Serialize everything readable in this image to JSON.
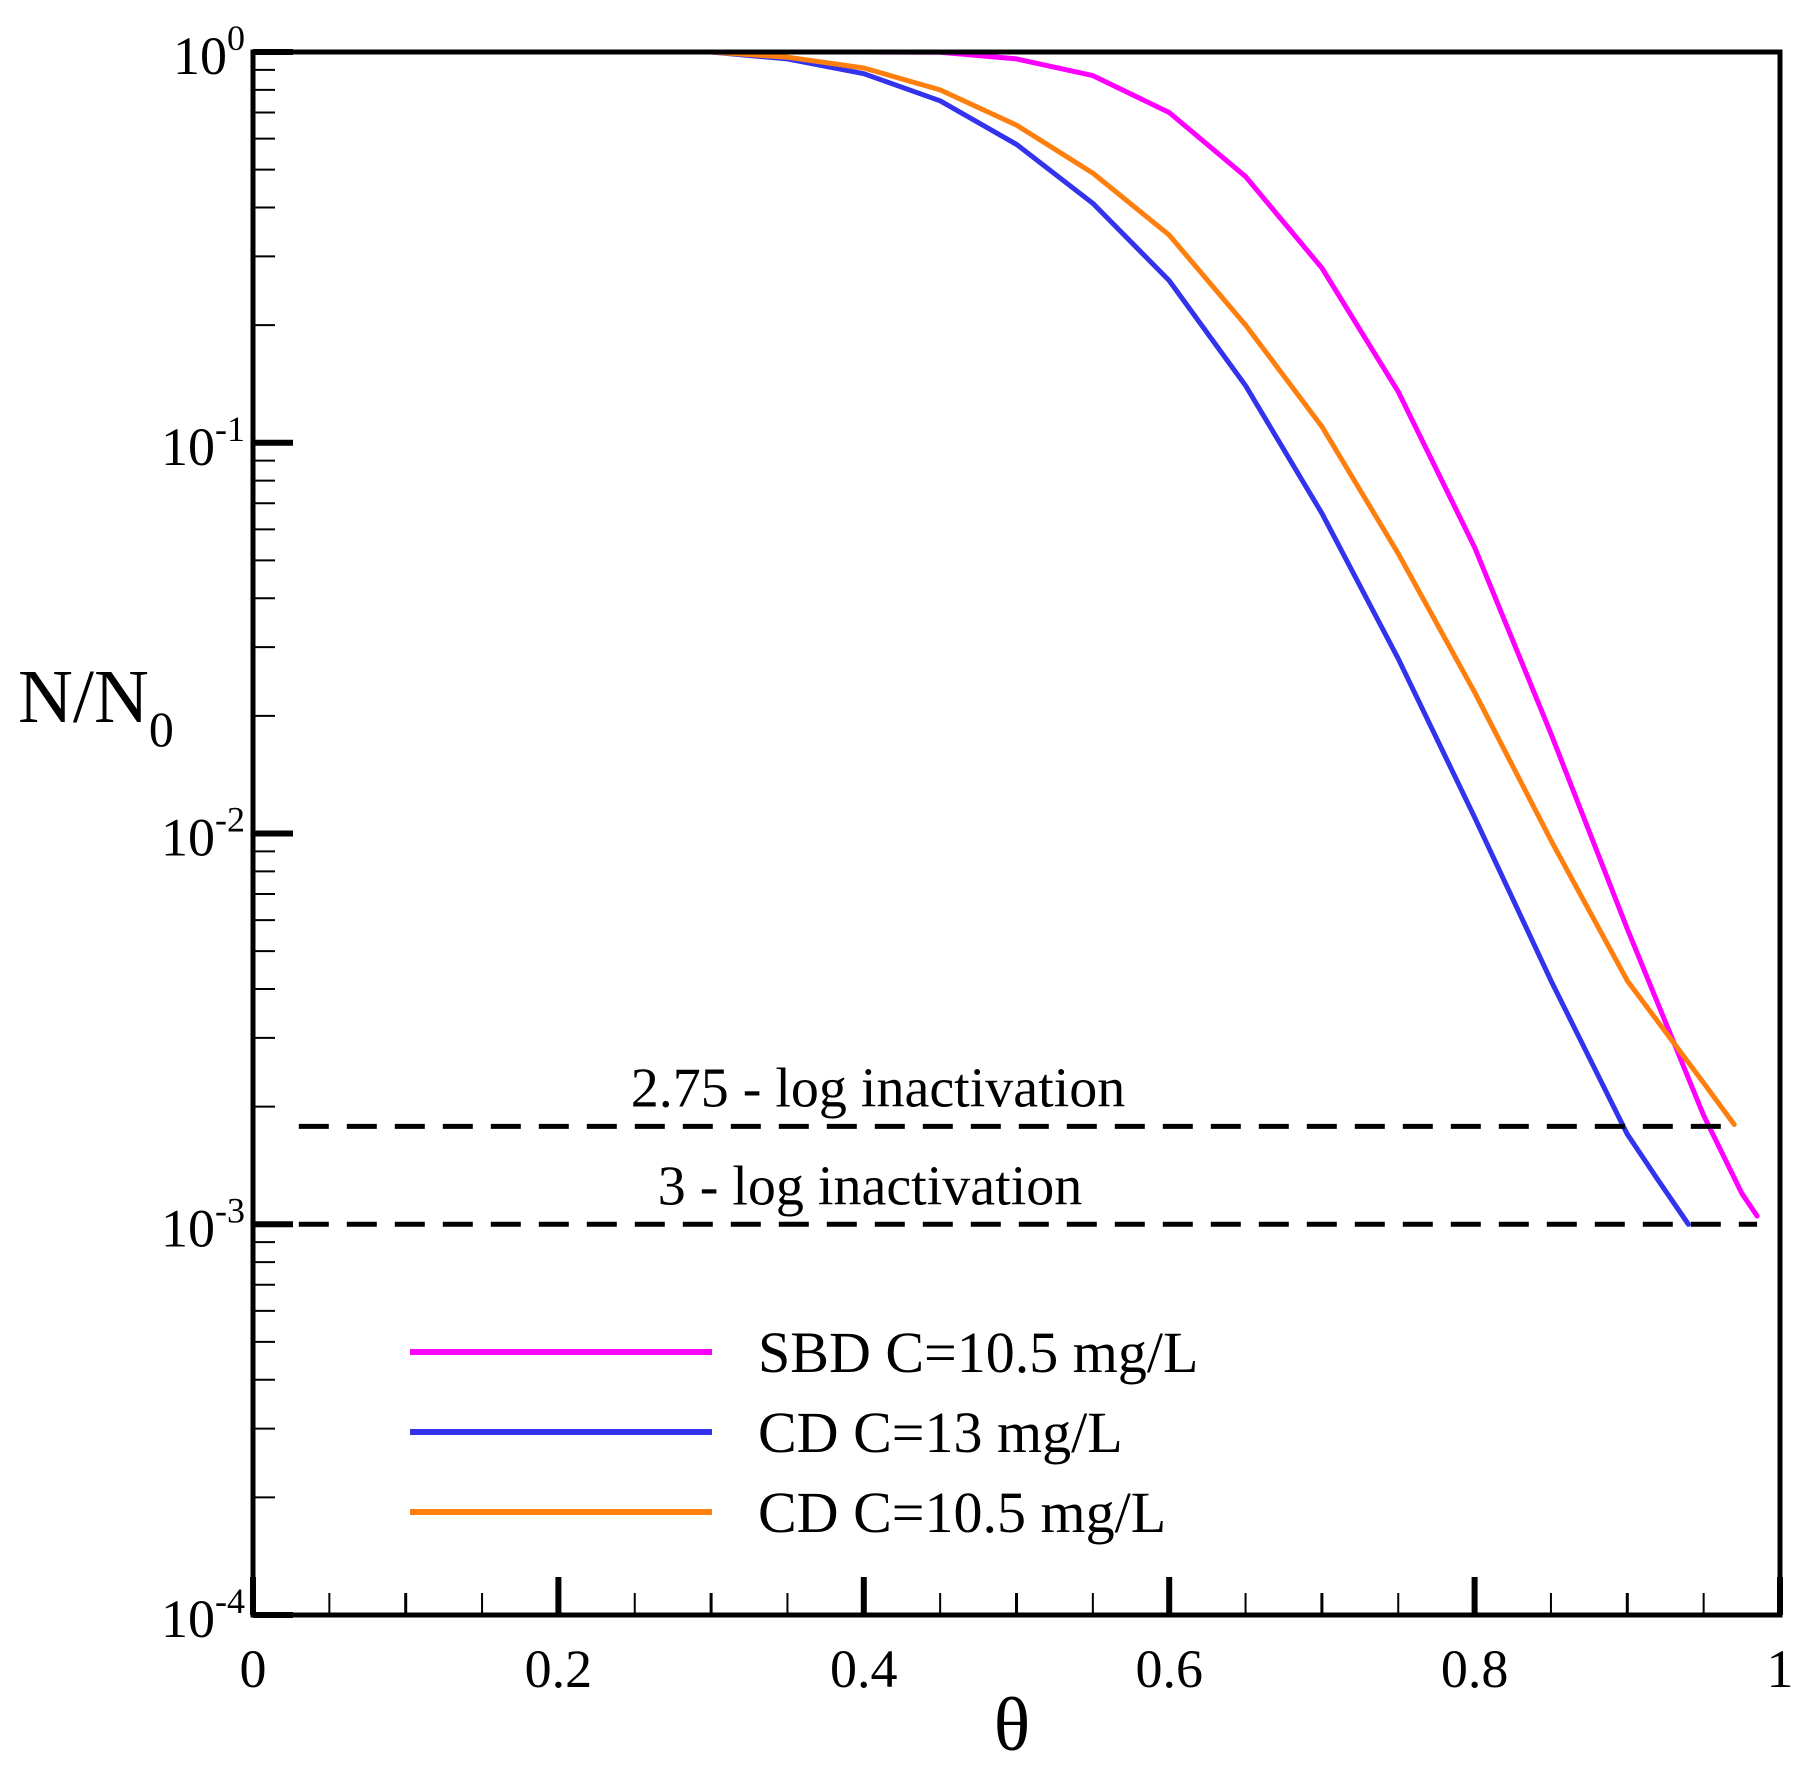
{
  "chart_data": {
    "type": "line",
    "xlabel": "θ",
    "ylabel": {
      "base": "N/N",
      "subscript": "0"
    },
    "xscale": "linear",
    "yscale": "log",
    "xlim": [
      0,
      1
    ],
    "ylim": [
      0.0001,
      1
    ],
    "x_ticks": [
      {
        "value": 0,
        "label": "0"
      },
      {
        "value": 0.2,
        "label": "0.2"
      },
      {
        "value": 0.4,
        "label": "0.4"
      },
      {
        "value": 0.6,
        "label": "0.6"
      },
      {
        "value": 0.8,
        "label": "0.8"
      },
      {
        "value": 1,
        "label": "1"
      }
    ],
    "y_ticks": [
      {
        "value": 1,
        "base": "10",
        "exp": "0"
      },
      {
        "value": 0.1,
        "base": "10",
        "exp": "-1"
      },
      {
        "value": 0.01,
        "base": "10",
        "exp": "-2"
      },
      {
        "value": 0.001,
        "base": "10",
        "exp": "-3"
      },
      {
        "value": 0.0001,
        "base": "10",
        "exp": "-4"
      }
    ],
    "series": [
      {
        "name": "SBD C=10.5 mg/L",
        "color": "#ff00ff",
        "x": [
          0.03,
          0.3,
          0.4,
          0.45,
          0.5,
          0.55,
          0.6,
          0.65,
          0.7,
          0.75,
          0.8,
          0.85,
          0.9,
          0.95,
          0.975,
          0.985
        ],
        "y": [
          1,
          1,
          1,
          0.998,
          0.96,
          0.87,
          0.7,
          0.48,
          0.28,
          0.135,
          0.054,
          0.018,
          0.0057,
          0.0019,
          0.0012,
          0.00105
        ]
      },
      {
        "name": "CD C=13 mg/L",
        "color": "#3333ee",
        "x": [
          0.03,
          0.3,
          0.35,
          0.4,
          0.45,
          0.5,
          0.55,
          0.6,
          0.65,
          0.7,
          0.75,
          0.8,
          0.85,
          0.9,
          0.92,
          0.94
        ],
        "y": [
          1,
          1,
          0.96,
          0.88,
          0.75,
          0.58,
          0.41,
          0.26,
          0.14,
          0.066,
          0.028,
          0.011,
          0.0042,
          0.0017,
          0.0013,
          0.001
        ]
      },
      {
        "name": "CD C=10.5 mg/L",
        "color": "#ff7f0e",
        "x": [
          0.03,
          0.3,
          0.35,
          0.4,
          0.45,
          0.5,
          0.55,
          0.6,
          0.65,
          0.7,
          0.75,
          0.8,
          0.85,
          0.9,
          0.95,
          0.97
        ],
        "y": [
          1,
          1,
          0.97,
          0.91,
          0.8,
          0.65,
          0.49,
          0.34,
          0.2,
          0.11,
          0.052,
          0.023,
          0.0096,
          0.0042,
          0.0023,
          0.0018
        ]
      }
    ],
    "reference_lines": [
      {
        "label": "2.75 - log inactivation",
        "y": 0.00178,
        "x_start": 0.03,
        "x_end": 0.97,
        "style": "dashed",
        "color": "#000000"
      },
      {
        "label": "3 - log inactivation",
        "y": 0.001,
        "x_start": 0.03,
        "x_end": 0.985,
        "style": "dashed",
        "color": "#000000"
      }
    ],
    "legend_position": "bottom-center",
    "grid": false
  }
}
